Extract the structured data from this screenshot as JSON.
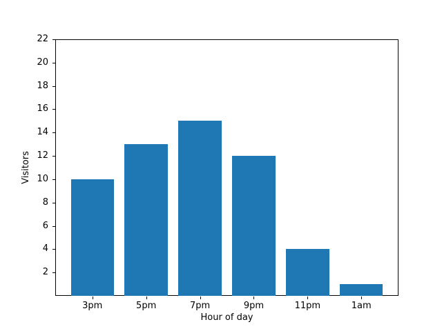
{
  "chart_data": {
    "type": "bar",
    "categories": [
      "3pm",
      "5pm",
      "7pm",
      "9pm",
      "11pm",
      "1am"
    ],
    "values": [
      10,
      13,
      15,
      12,
      4,
      1
    ],
    "title": "",
    "xlabel": "Hour of day",
    "ylabel": "Visitors",
    "ylim": [
      0,
      22
    ],
    "yticks": [
      2,
      4,
      6,
      8,
      10,
      12,
      14,
      16,
      18,
      20,
      22
    ],
    "grid": false,
    "legend": null,
    "bar_color": "#1f77b4",
    "spine_color": "#000000",
    "background_color": "#ffffff"
  }
}
